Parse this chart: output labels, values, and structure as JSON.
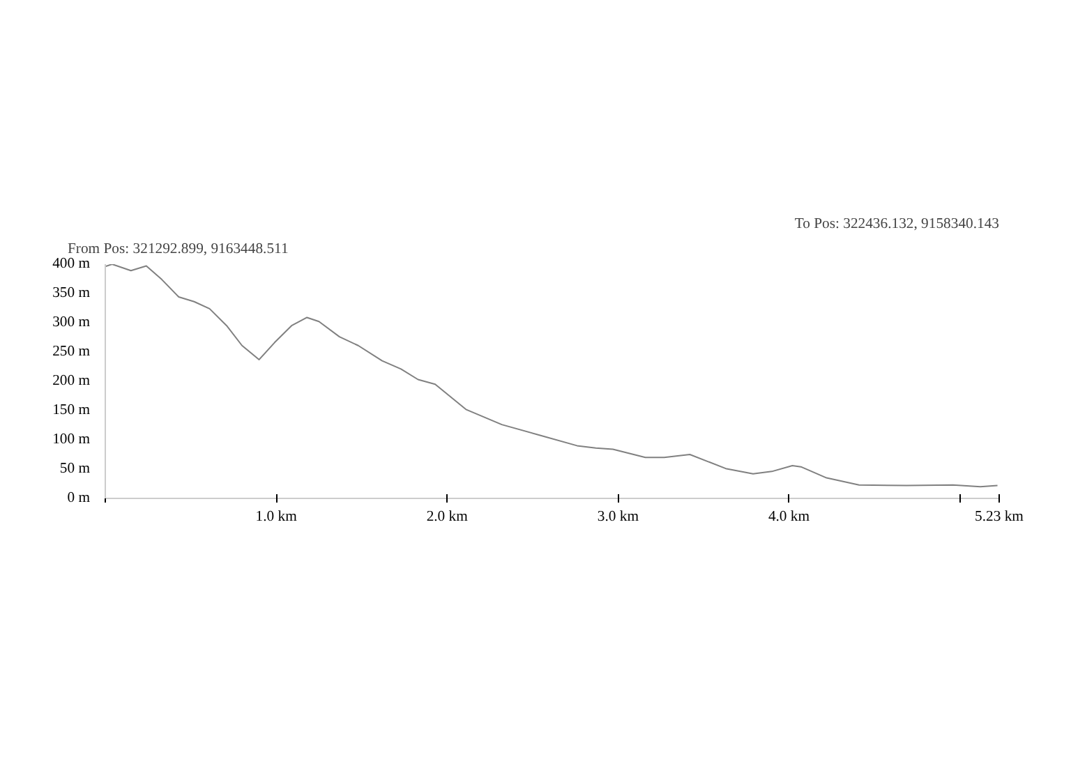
{
  "chart_data": {
    "type": "line",
    "annotations": [
      "From Pos: 321292.899, 9163448.511",
      "To Pos: 322436.132, 9158340.143"
    ],
    "x": [
      0,
      0.04,
      0.15,
      0.24,
      0.33,
      0.43,
      0.52,
      0.61,
      0.71,
      0.8,
      0.9,
      0.99,
      1.09,
      1.18,
      1.25,
      1.37,
      1.48,
      1.62,
      1.73,
      1.83,
      1.93,
      2.11,
      2.32,
      2.54,
      2.76,
      2.87,
      2.97,
      3.16,
      3.27,
      3.42,
      3.63,
      3.79,
      3.9,
      4.02,
      4.07,
      4.22,
      4.41,
      4.69,
      4.96,
      5.12,
      5.22
    ],
    "series": [
      {
        "color": "#808080",
        "values": [
          396,
          400,
          389,
          397,
          374,
          344,
          336,
          324,
          295,
          261,
          237,
          266,
          295,
          309,
          302,
          276,
          261,
          235,
          221,
          203,
          195,
          152,
          126,
          108,
          90,
          86,
          84,
          70,
          70,
          75,
          51,
          42,
          46,
          56,
          54,
          35,
          23,
          22,
          23,
          20,
          22
        ]
      }
    ],
    "xlim": [
      0,
      5.23
    ],
    "xticks": [
      {
        "value": 0,
        "label": null
      },
      {
        "value": 1,
        "label": "1.0 km"
      },
      {
        "value": 2,
        "label": "2.0 km"
      },
      {
        "value": 3,
        "label": "3.0 km"
      },
      {
        "value": 4,
        "label": "4.0 km"
      },
      {
        "value": 5,
        "label": null
      },
      {
        "value": 5.23,
        "label": "5.23 km"
      }
    ],
    "ylim": [
      0,
      400
    ],
    "yticks": [
      {
        "value": 0,
        "label": "0 m"
      },
      {
        "value": 50,
        "label": "50 m"
      },
      {
        "value": 100,
        "label": "100 m"
      },
      {
        "value": 150,
        "label": "150 m"
      },
      {
        "value": 200,
        "label": "200 m"
      },
      {
        "value": 250,
        "label": "250 m"
      },
      {
        "value": 300,
        "label": "300 m"
      },
      {
        "value": 350,
        "label": "350 m"
      },
      {
        "value": 400,
        "label": "400 m"
      }
    ],
    "line_style": "solid"
  }
}
